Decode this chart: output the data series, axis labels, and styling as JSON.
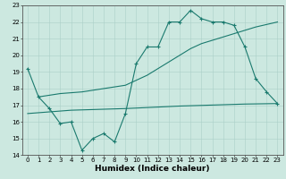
{
  "xlabel": "Humidex (Indice chaleur)",
  "bg_color": "#cce8e0",
  "line_color": "#1a7a6e",
  "xlim": [
    -0.5,
    23.5
  ],
  "ylim": [
    14,
    23
  ],
  "yticks": [
    14,
    15,
    16,
    17,
    18,
    19,
    20,
    21,
    22,
    23
  ],
  "xticks": [
    0,
    1,
    2,
    3,
    4,
    5,
    6,
    7,
    8,
    9,
    10,
    11,
    12,
    13,
    14,
    15,
    16,
    17,
    18,
    19,
    20,
    21,
    22,
    23
  ],
  "line1_x": [
    0,
    1,
    2,
    3,
    4,
    5,
    6,
    7,
    8,
    9,
    10,
    11,
    12,
    13,
    14,
    15,
    16,
    17,
    18,
    19,
    20,
    21,
    22,
    23
  ],
  "line1_y": [
    19.2,
    17.5,
    16.8,
    15.9,
    16.0,
    14.3,
    15.0,
    15.3,
    14.8,
    16.5,
    19.5,
    20.5,
    20.5,
    22.0,
    22.0,
    22.7,
    22.2,
    22.0,
    22.0,
    21.8,
    20.5,
    18.6,
    17.8,
    17.1
  ],
  "line2_x": [
    1,
    2,
    3,
    4,
    5,
    6,
    7,
    8,
    9,
    10,
    11,
    12,
    13,
    14,
    15,
    16,
    17,
    18,
    19,
    20,
    21,
    22,
    23
  ],
  "line2_y": [
    17.5,
    17.6,
    17.7,
    17.75,
    17.8,
    17.9,
    18.0,
    18.1,
    18.2,
    18.5,
    18.8,
    19.2,
    19.6,
    20.0,
    20.4,
    20.7,
    20.9,
    21.1,
    21.3,
    21.5,
    21.7,
    21.85,
    22.0
  ],
  "line3_x": [
    0,
    1,
    2,
    3,
    4,
    5,
    6,
    7,
    8,
    9,
    10,
    11,
    12,
    13,
    14,
    15,
    16,
    17,
    18,
    19,
    20,
    21,
    22,
    23
  ],
  "line3_y": [
    16.5,
    16.55,
    16.6,
    16.65,
    16.7,
    16.72,
    16.74,
    16.76,
    16.78,
    16.8,
    16.83,
    16.86,
    16.89,
    16.92,
    16.95,
    16.97,
    16.99,
    17.01,
    17.03,
    17.05,
    17.07,
    17.08,
    17.09,
    17.1
  ],
  "grid_color": "#aacfc8",
  "tick_fontsize": 5.0,
  "label_fontsize": 6.5
}
